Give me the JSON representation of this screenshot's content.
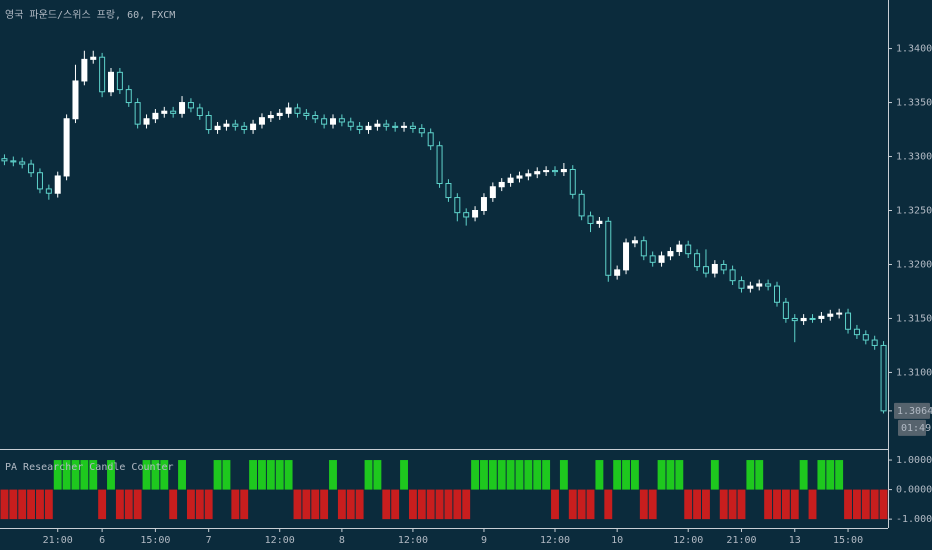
{
  "chart_data": [
    {
      "type": "candlestick",
      "title": "영국 파운드/스위스 프랑, 60, FXCM",
      "categories": [
        null,
        null,
        null,
        null,
        null,
        null,
        "21:00",
        null,
        null,
        null,
        null,
        "6",
        null,
        null,
        null,
        null,
        null,
        "15:00",
        null,
        null,
        null,
        null,
        null,
        "7",
        null,
        null,
        null,
        null,
        null,
        null,
        null,
        "12:00",
        null,
        null,
        null,
        null,
        null,
        null,
        "8",
        null,
        null,
        null,
        null,
        null,
        null,
        null,
        "12:00",
        null,
        null,
        null,
        null,
        null,
        null,
        null,
        "9",
        null,
        null,
        null,
        null,
        null,
        null,
        null,
        "12:00",
        null,
        null,
        null,
        null,
        null,
        null,
        "10",
        null,
        null,
        null,
        null,
        null,
        null,
        null,
        "12:00",
        null,
        null,
        null,
        null,
        null,
        "21:00",
        null,
        null,
        null,
        null,
        null,
        "13",
        null,
        null,
        null,
        null,
        null,
        "15:00",
        null,
        null,
        null,
        null
      ],
      "open": [
        1.3298,
        1.3296,
        1.3295,
        1.3293,
        1.3285,
        1.327,
        1.3266,
        1.3282,
        1.3335,
        1.337,
        1.339,
        1.3392,
        1.336,
        1.3378,
        1.3362,
        1.335,
        1.333,
        1.3335,
        1.334,
        1.3342,
        1.334,
        1.335,
        1.3345,
        1.3338,
        1.3325,
        1.3328,
        1.333,
        1.3328,
        1.3325,
        1.333,
        1.3336,
        1.3338,
        1.334,
        1.3345,
        1.334,
        1.3338,
        1.3335,
        1.333,
        1.3335,
        1.3332,
        1.3328,
        1.3325,
        1.3328,
        1.333,
        1.3328,
        1.3327,
        1.3328,
        1.3326,
        1.3322,
        1.331,
        1.3275,
        1.3262,
        1.3248,
        1.3244,
        1.325,
        1.3262,
        1.3272,
        1.3276,
        1.328,
        1.3282,
        1.3284,
        1.3286,
        1.3287,
        1.3286,
        1.3288,
        1.3265,
        1.3245,
        1.3238,
        1.324,
        1.319,
        1.3195,
        1.322,
        1.3222,
        1.3208,
        1.3202,
        1.3208,
        1.3212,
        1.3218,
        1.321,
        1.3198,
        1.3192,
        1.32,
        1.3195,
        1.3185,
        1.3178,
        1.318,
        1.3182,
        1.318,
        1.3165,
        1.315,
        1.3148,
        1.315,
        1.315,
        1.3152,
        1.3154,
        1.3155,
        1.314,
        1.3135,
        1.313,
        1.3125
      ],
      "high": [
        1.3302,
        1.33,
        1.3299,
        1.3297,
        1.3289,
        1.3274,
        1.3286,
        1.3339,
        1.3385,
        1.3398,
        1.3398,
        1.3396,
        1.3382,
        1.3382,
        1.3366,
        1.3354,
        1.3339,
        1.3344,
        1.3346,
        1.3346,
        1.3356,
        1.3354,
        1.3349,
        1.3342,
        1.3332,
        1.3334,
        1.3334,
        1.3332,
        1.3334,
        1.334,
        1.3342,
        1.3344,
        1.335,
        1.3349,
        1.3344,
        1.3342,
        1.3339,
        1.3339,
        1.3339,
        1.3336,
        1.3332,
        1.3332,
        1.3334,
        1.3334,
        1.3332,
        1.3332,
        1.3332,
        1.333,
        1.3326,
        1.3314,
        1.3279,
        1.3266,
        1.3252,
        1.3254,
        1.3266,
        1.3276,
        1.328,
        1.3284,
        1.3286,
        1.3288,
        1.329,
        1.3291,
        1.3291,
        1.3294,
        1.3292,
        1.3269,
        1.3249,
        1.3244,
        1.3244,
        1.3199,
        1.3224,
        1.3226,
        1.3226,
        1.3212,
        1.3212,
        1.3216,
        1.3222,
        1.3222,
        1.3214,
        1.3214,
        1.3204,
        1.3204,
        1.3199,
        1.3189,
        1.3184,
        1.3186,
        1.3186,
        1.3184,
        1.3169,
        1.3154,
        1.3154,
        1.3154,
        1.3156,
        1.3158,
        1.3159,
        1.3159,
        1.3144,
        1.3139,
        1.3134,
        1.3129
      ],
      "low": [
        1.3292,
        1.3291,
        1.3289,
        1.3281,
        1.3266,
        1.326,
        1.3262,
        1.3278,
        1.3331,
        1.3366,
        1.3386,
        1.3355,
        1.3356,
        1.3358,
        1.3346,
        1.3326,
        1.3326,
        1.3331,
        1.3336,
        1.3336,
        1.3336,
        1.3341,
        1.3334,
        1.3321,
        1.3321,
        1.3324,
        1.3324,
        1.3321,
        1.3321,
        1.3326,
        1.3332,
        1.3334,
        1.3336,
        1.3336,
        1.3334,
        1.3331,
        1.3326,
        1.3326,
        1.3328,
        1.3324,
        1.3321,
        1.3321,
        1.3324,
        1.3324,
        1.3323,
        1.3323,
        1.3322,
        1.3318,
        1.3306,
        1.3271,
        1.3258,
        1.324,
        1.3236,
        1.324,
        1.3246,
        1.3258,
        1.3268,
        1.3272,
        1.3276,
        1.3278,
        1.328,
        1.3282,
        1.3282,
        1.3282,
        1.3261,
        1.3241,
        1.323,
        1.3234,
        1.3184,
        1.3186,
        1.3191,
        1.3216,
        1.3204,
        1.3198,
        1.3198,
        1.3204,
        1.3208,
        1.3206,
        1.3194,
        1.3188,
        1.3188,
        1.3191,
        1.3181,
        1.3174,
        1.3174,
        1.3176,
        1.3176,
        1.3161,
        1.3146,
        1.3128,
        1.3144,
        1.3146,
        1.3146,
        1.3148,
        1.315,
        1.3136,
        1.3131,
        1.3126,
        1.3121,
        1.3062
      ],
      "close": [
        1.3296,
        1.3295,
        1.3293,
        1.3285,
        1.327,
        1.3266,
        1.3282,
        1.3335,
        1.337,
        1.339,
        1.3392,
        1.336,
        1.3378,
        1.3362,
        1.335,
        1.333,
        1.3335,
        1.334,
        1.3342,
        1.334,
        1.335,
        1.3345,
        1.3338,
        1.3325,
        1.3328,
        1.333,
        1.3328,
        1.3325,
        1.333,
        1.3336,
        1.3338,
        1.334,
        1.3345,
        1.334,
        1.3338,
        1.3335,
        1.333,
        1.3335,
        1.3332,
        1.3328,
        1.3325,
        1.3328,
        1.333,
        1.3328,
        1.3327,
        1.3328,
        1.3326,
        1.3322,
        1.331,
        1.3275,
        1.3262,
        1.3248,
        1.3244,
        1.325,
        1.3262,
        1.3272,
        1.3276,
        1.328,
        1.3282,
        1.3284,
        1.3286,
        1.3287,
        1.3286,
        1.3288,
        1.3265,
        1.3245,
        1.3238,
        1.324,
        1.319,
        1.3195,
        1.322,
        1.3222,
        1.3208,
        1.3202,
        1.3208,
        1.3212,
        1.3218,
        1.321,
        1.3198,
        1.3192,
        1.32,
        1.3195,
        1.3185,
        1.3178,
        1.318,
        1.3182,
        1.318,
        1.3165,
        1.315,
        1.3148,
        1.315,
        1.315,
        1.3152,
        1.3154,
        1.3155,
        1.314,
        1.3135,
        1.313,
        1.3125,
        1.30644
      ],
      "up_color": "#ffffff",
      "down_color": "#0b2b3c",
      "wick_color": "#5fd3cb",
      "ylim": [
        1.303,
        1.3445
      ],
      "yticks": [
        {
          "value": 1.31,
          "label": "1.31000"
        },
        {
          "value": 1.315,
          "label": "1.31500"
        },
        {
          "value": 1.32,
          "label": "1.32000"
        },
        {
          "value": 1.325,
          "label": "1.32500"
        },
        {
          "value": 1.33,
          "label": "1.33000"
        },
        {
          "value": 1.335,
          "label": "1.33500"
        },
        {
          "value": 1.34,
          "label": "1.34000"
        }
      ],
      "last_price": 1.30644,
      "countdown": "01:49"
    },
    {
      "type": "bar",
      "title": "PA Researcher Candle Counter",
      "values": [
        -1,
        -1,
        -1,
        -1,
        -1,
        -1,
        1,
        1,
        1,
        1,
        1,
        -1,
        1,
        -1,
        -1,
        -1,
        1,
        1,
        1,
        -1,
        1,
        -1,
        -1,
        -1,
        1,
        1,
        -1,
        -1,
        1,
        1,
        1,
        1,
        1,
        -1,
        -1,
        -1,
        -1,
        1,
        -1,
        -1,
        -1,
        1,
        1,
        -1,
        -1,
        1,
        -1,
        -1,
        -1,
        -1,
        -1,
        -1,
        -1,
        1,
        1,
        1,
        1,
        1,
        1,
        1,
        1,
        1,
        -1,
        1,
        -1,
        -1,
        -1,
        1,
        -1,
        1,
        1,
        1,
        -1,
        -1,
        1,
        1,
        1,
        -1,
        -1,
        -1,
        1,
        -1,
        -1,
        -1,
        1,
        1,
        -1,
        -1,
        -1,
        -1,
        1,
        -1,
        1,
        1,
        1,
        -1,
        -1,
        -1,
        -1,
        -1
      ],
      "up_color": "#1ec81e",
      "down_color": "#c81e1e",
      "ylim": [
        -1.3,
        1.34
      ],
      "yticks": [
        {
          "value": -1,
          "label": "-1.00000"
        },
        {
          "value": 0,
          "label": "0.00000"
        },
        {
          "value": 1,
          "label": "1.00000"
        }
      ]
    }
  ]
}
